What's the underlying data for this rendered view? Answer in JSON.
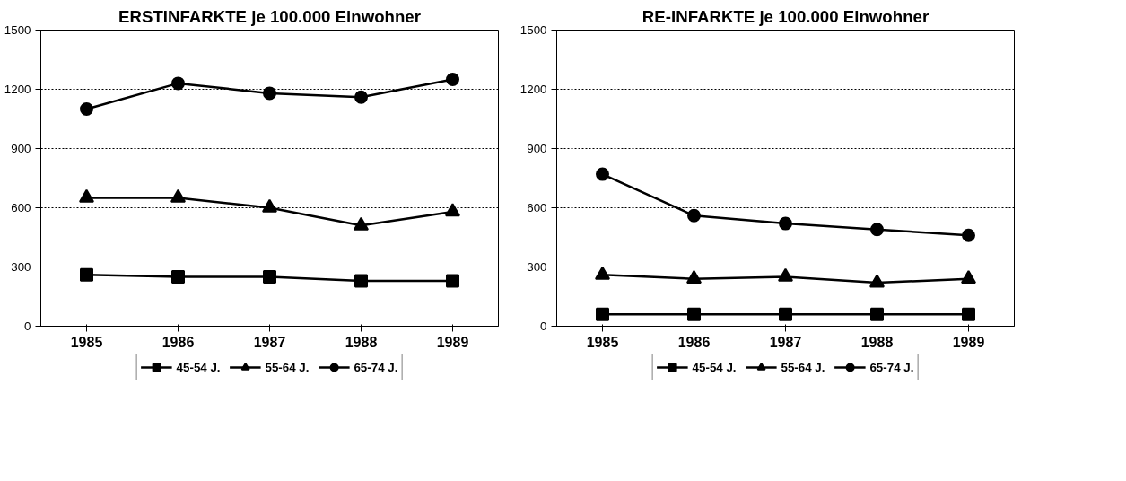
{
  "chart_data": [
    {
      "type": "line",
      "title": "ERSTINFARKTE je 100.000 Einwohner",
      "categories": [
        "1985",
        "1986",
        "1987",
        "1988",
        "1989"
      ],
      "ylim": [
        0,
        1500
      ],
      "yticks": [
        0,
        300,
        600,
        900,
        1200,
        1500
      ],
      "grid": "y",
      "legend": "bottom",
      "line_style": "solid",
      "series": [
        {
          "name": "45-54 J.",
          "color": "#000000",
          "marker": "square",
          "values": [
            260,
            250,
            250,
            230,
            230
          ]
        },
        {
          "name": "55-64 J.",
          "color": "#000000",
          "marker": "triangle",
          "values": [
            650,
            650,
            600,
            510,
            580
          ]
        },
        {
          "name": "65-74 J.",
          "color": "#000000",
          "marker": "circle",
          "values": [
            1100,
            1230,
            1180,
            1160,
            1250
          ]
        }
      ]
    },
    {
      "type": "line",
      "title": "RE-INFARKTE je 100.000 Einwohner",
      "categories": [
        "1985",
        "1986",
        "1987",
        "1988",
        "1989"
      ],
      "ylim": [
        0,
        1500
      ],
      "yticks": [
        0,
        300,
        600,
        900,
        1200,
        1500
      ],
      "grid": "y",
      "legend": "bottom",
      "line_style": "solid",
      "series": [
        {
          "name": "45-54 J.",
          "color": "#000000",
          "marker": "square",
          "values": [
            60,
            60,
            60,
            60,
            60
          ]
        },
        {
          "name": "55-64 J.",
          "color": "#000000",
          "marker": "triangle",
          "values": [
            260,
            240,
            250,
            220,
            240
          ]
        },
        {
          "name": "65-74 J.",
          "color": "#000000",
          "marker": "circle",
          "values": [
            770,
            560,
            520,
            490,
            460
          ]
        }
      ]
    }
  ]
}
